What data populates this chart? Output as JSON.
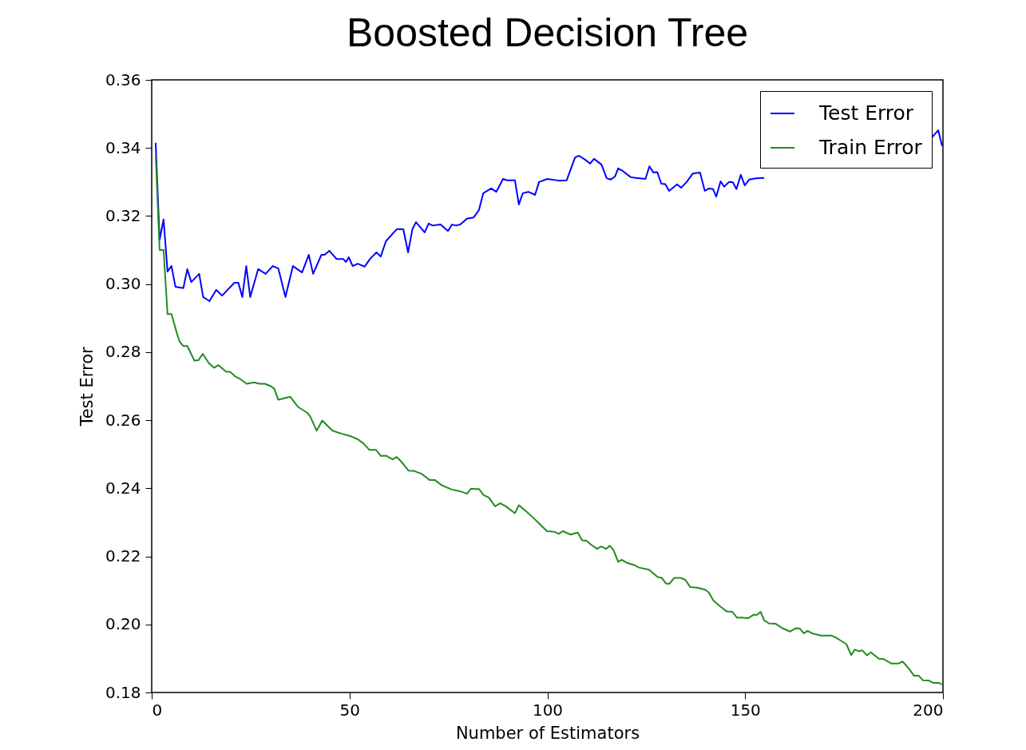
{
  "chart_data": {
    "type": "line",
    "title": "Boosted Decision Tree",
    "xlabel": "Number of Estimators",
    "ylabel": "Test Error",
    "xlim": [
      0,
      200
    ],
    "xticks": [
      0,
      50,
      100,
      150,
      200
    ],
    "ylim": [
      0.18,
      0.36
    ],
    "yticks": [
      {
        "value": 0.18,
        "label": "0.18"
      },
      {
        "value": 0.2,
        "label": "0.20"
      },
      {
        "value": 0.22,
        "label": "0.22"
      },
      {
        "value": 0.24,
        "label": "0.24"
      },
      {
        "value": 0.26,
        "label": "0.26"
      },
      {
        "value": 0.28,
        "label": "0.28"
      },
      {
        "value": 0.3,
        "label": "0.30"
      },
      {
        "value": 0.32,
        "label": "0.32"
      },
      {
        "value": 0.34,
        "label": "0.34"
      },
      {
        "value": 0.36,
        "label": "0.36"
      }
    ],
    "grid": false,
    "legend": "top right",
    "series": [
      {
        "name": "Test Error",
        "color": "#0000ff",
        "x": [
          1,
          2,
          3,
          4,
          5,
          6,
          8,
          9,
          10,
          12,
          13,
          14.6,
          16.3,
          17.8,
          20.9,
          21.9,
          22.9,
          23.9,
          24.9,
          26.9,
          28.8,
          30.6,
          32,
          33.8,
          35.7,
          38,
          39.7,
          40.8,
          42.9,
          43.7,
          44.9,
          46.7,
          48.4,
          49.1,
          49.8,
          50.8,
          52.1,
          53.8,
          55.2,
          56.8,
          57.9,
          59.2,
          61.9,
          63.6,
          64.8,
          65.9,
          66.8,
          69,
          70,
          71,
          73,
          74.9,
          75.9,
          76.9,
          78,
          79.7,
          81.4,
          82.7,
          83.8,
          85.8,
          87.1,
          88.8,
          89.8,
          91.8,
          92.8,
          93.8,
          95.2,
          96.9,
          97.9,
          100,
          102.9,
          104.9,
          107,
          108,
          109.6,
          110.8,
          111.8,
          113.7,
          115,
          116,
          117.1,
          117.9,
          119.1,
          121.1,
          122.4,
          124.8,
          125.8,
          126.8,
          127.8,
          128.8,
          129.8,
          130.8,
          132.8,
          133.8,
          135.2,
          136.8,
          138.6,
          139.8,
          140.9,
          141.9,
          142.7,
          143.8,
          144.7,
          145.9,
          146.9,
          147.8,
          148.9,
          149.9,
          151,
          152.8,
          154.8,
          157,
          196,
          197.2,
          198.8,
          199.8
        ],
        "values": [
          0.3415,
          0.313,
          0.319,
          0.3037,
          0.3053,
          0.2992,
          0.2988,
          0.3044,
          0.3006,
          0.303,
          0.2962,
          0.295,
          0.2983,
          0.2966,
          0.3004,
          0.3004,
          0.2962,
          0.3053,
          0.2962,
          0.3044,
          0.303,
          0.3053,
          0.3046,
          0.2962,
          0.3053,
          0.3034,
          0.3086,
          0.303,
          0.3086,
          0.3086,
          0.3098,
          0.3074,
          0.3074,
          0.3065,
          0.3079,
          0.3053,
          0.306,
          0.3051,
          0.3074,
          0.3093,
          0.3081,
          0.3126,
          0.3161,
          0.3161,
          0.3093,
          0.3161,
          0.3182,
          0.3152,
          0.3178,
          0.3172,
          0.3175,
          0.3156,
          0.3175,
          0.3172,
          0.3175,
          0.3192,
          0.3196,
          0.3217,
          0.3267,
          0.3281,
          0.3271,
          0.3309,
          0.3305,
          0.3305,
          0.3234,
          0.3267,
          0.3271,
          0.3262,
          0.33,
          0.3309,
          0.3304,
          0.3305,
          0.3372,
          0.3377,
          0.3365,
          0.3354,
          0.3368,
          0.3351,
          0.3311,
          0.3307,
          0.3316,
          0.334,
          0.3332,
          0.3314,
          0.3312,
          0.3309,
          0.3346,
          0.3328,
          0.3329,
          0.3295,
          0.3294,
          0.3274,
          0.3293,
          0.3283,
          0.33,
          0.3325,
          0.3328,
          0.3274,
          0.3281,
          0.3279,
          0.3257,
          0.3302,
          0.3286,
          0.33,
          0.3299,
          0.3279,
          0.3321,
          0.329,
          0.3307,
          0.3311,
          0.3312,
          null,
          null,
          0.3431,
          0.3452,
          0.3405
        ]
      },
      {
        "name": "Train Error",
        "color": "#228b22",
        "x": [
          1,
          2,
          3,
          4,
          5,
          6.4,
          7.1,
          8,
          9,
          10.8,
          11.8,
          12.9,
          14.5,
          15.8,
          16.8,
          18.8,
          19.8,
          21.2,
          22.5,
          24,
          25.9,
          27.2,
          28.6,
          30.1,
          31,
          32,
          33,
          35,
          37,
          39.3,
          40.1,
          41.7,
          43.1,
          45.7,
          48.1,
          50.5,
          52.1,
          53.5,
          55,
          56.7,
          57.9,
          59.2,
          60.9,
          61.9,
          63.2,
          64.9,
          66.3,
          68.3,
          70.3,
          71.6,
          73.3,
          75.7,
          78,
          79.7,
          80.7,
          81.7,
          82.7,
          83.9,
          85.2,
          86.8,
          88.1,
          89.5,
          91.8,
          92.8,
          94.5,
          96.2,
          97.9,
          99.9,
          101.9,
          102.9,
          103.9,
          105.9,
          107.7,
          108.8,
          109.9,
          111.2,
          112.6,
          113.6,
          114.8,
          115.8,
          116.7,
          117.9,
          118.8,
          120.3,
          121.8,
          123.2,
          125.7,
          127.9,
          128.9,
          130,
          130.9,
          132.1,
          133.6,
          134.9,
          136.1,
          137.9,
          139.9,
          140.8,
          142,
          143.7,
          145.4,
          146.8,
          147.9,
          149.1,
          150.7,
          152.1,
          153,
          153.9,
          154.8,
          156,
          157.7,
          159.4,
          161.4,
          162.8,
          163.8,
          164.8,
          165.8,
          167.1,
          169.2,
          171.9,
          173,
          174.2,
          175.6,
          176.8,
          177.7,
          178.8,
          179.6,
          180.8,
          181.8,
          183.8,
          185,
          187,
          188.7,
          189.8,
          191.4,
          192.7,
          193.9,
          194.9,
          196.4,
          197.7,
          199,
          199.7
        ],
        "values": [
          0.338,
          0.31,
          0.31,
          0.2912,
          0.2912,
          0.2854,
          0.283,
          0.2818,
          0.2818,
          0.2775,
          0.2776,
          0.2795,
          0.2767,
          0.2754,
          0.2762,
          0.2743,
          0.2742,
          0.2728,
          0.272,
          0.2707,
          0.2711,
          0.2707,
          0.2707,
          0.27,
          0.2692,
          0.266,
          0.2663,
          0.2669,
          0.2639,
          0.2622,
          0.261,
          0.2569,
          0.2599,
          0.2569,
          0.256,
          0.2552,
          0.2544,
          0.2532,
          0.2513,
          0.2513,
          0.2495,
          0.2496,
          0.2485,
          0.2492,
          0.2477,
          0.2452,
          0.2451,
          0.2442,
          0.2424,
          0.2424,
          0.2409,
          0.2397,
          0.2391,
          0.2384,
          0.2399,
          0.2398,
          0.2398,
          0.238,
          0.2373,
          0.2347,
          0.2356,
          0.2347,
          0.2327,
          0.235,
          0.2334,
          0.2316,
          0.2297,
          0.2274,
          0.2272,
          0.2266,
          0.2274,
          0.2264,
          0.227,
          0.2247,
          0.2246,
          0.2233,
          0.2222,
          0.2229,
          0.2222,
          0.2231,
          0.2219,
          0.2184,
          0.219,
          0.218,
          0.2175,
          0.2167,
          0.2161,
          0.2139,
          0.2137,
          0.212,
          0.212,
          0.2137,
          0.2137,
          0.2131,
          0.211,
          0.2108,
          0.2102,
          0.2094,
          0.207,
          0.2053,
          0.2038,
          0.2037,
          0.202,
          0.202,
          0.2018,
          0.2028,
          0.2028,
          0.2037,
          0.2012,
          0.2003,
          0.2002,
          0.1989,
          0.1979,
          0.1989,
          0.1988,
          0.1974,
          0.1981,
          0.1973,
          0.1967,
          0.1967,
          0.1961,
          0.1952,
          0.1942,
          0.191,
          0.1926,
          0.1921,
          0.1924,
          0.1909,
          0.1918,
          0.1899,
          0.1898,
          0.1885,
          0.1885,
          0.1891,
          0.187,
          0.1849,
          0.1849,
          0.1836,
          0.1835,
          0.1828,
          0.1828,
          0.1824
        ]
      }
    ]
  }
}
